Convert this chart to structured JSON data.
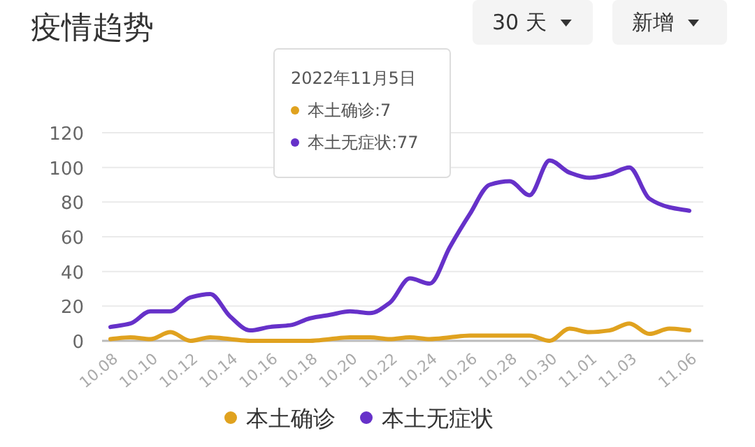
{
  "chart_data": {
    "type": "line",
    "title": "疫情趋势",
    "categories": [
      "10.08",
      null,
      "10.10",
      null,
      "10.12",
      null,
      "10.14",
      null,
      "10.16",
      null,
      "10.18",
      null,
      "10.20",
      null,
      "10.22",
      null,
      "10.24",
      null,
      "10.26",
      null,
      "10.28",
      null,
      "10.30",
      null,
      "11.01",
      null,
      "11.03",
      null,
      null,
      "11.06"
    ],
    "series": [
      {
        "name": "本土确诊",
        "color": "#e0a21f",
        "values": [
          1,
          2,
          1,
          5,
          0,
          2,
          1,
          0,
          0,
          0,
          0,
          1,
          2,
          2,
          1,
          2,
          1,
          2,
          3,
          3,
          3,
          3,
          0,
          7,
          5,
          6,
          10,
          4,
          7,
          6
        ]
      },
      {
        "name": "本土无症状",
        "color": "#6631c9",
        "values": [
          8,
          10,
          17,
          17,
          25,
          27,
          14,
          6,
          8,
          9,
          13,
          15,
          17,
          16,
          22,
          36,
          33,
          54,
          73,
          90,
          92,
          84,
          104,
          97,
          94,
          96,
          100,
          82,
          77,
          75
        ]
      }
    ],
    "ylim": [
      0,
      120
    ],
    "yticks": [
      0,
      20,
      40,
      60,
      80,
      100,
      120
    ],
    "grid": "y",
    "legend": "bottom",
    "marker": "none",
    "line_style": "solid",
    "annotations": [
      "30 天",
      "新增",
      "2022年11月5日",
      "本土确诊:7",
      "本土无症状:77"
    ]
  }
}
